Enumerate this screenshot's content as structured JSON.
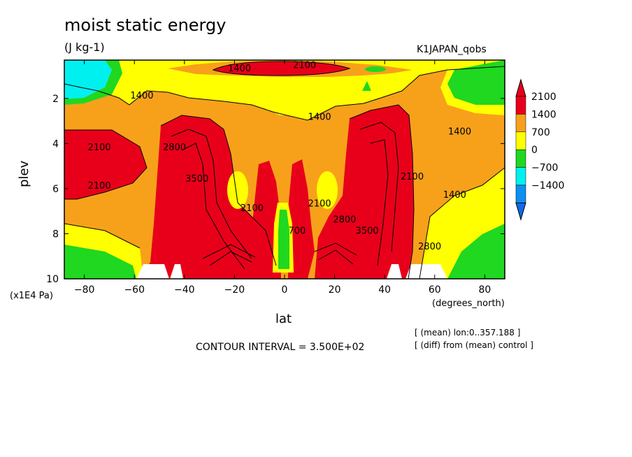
{
  "header": {
    "title": "moist static energy",
    "units": "(J kg-1)",
    "run": "K1JAPAN_qobs"
  },
  "footer": {
    "interval": "CONTOUR INTERVAL = 3.500E+02",
    "note1": "[ (mean) lon:0..357.188 ]",
    "note2": "[ (diff) from (mean) control ]"
  },
  "chart_data": {
    "type": "heatmap",
    "title": "moist static energy",
    "subtitle": "(J kg-1)",
    "xlabel": "lat",
    "xunits": "(degrees_north)",
    "ylabel": "plev",
    "yunits": "(x1E4 Pa)",
    "xlim": [
      -88,
      88
    ],
    "ylim": [
      10,
      0.3
    ],
    "x_ticks": [
      -80,
      -60,
      -40,
      -20,
      0,
      20,
      40,
      60,
      80
    ],
    "y_ticks": [
      2,
      4,
      6,
      8,
      10
    ],
    "contour_interval": 350,
    "contour_labels": [
      {
        "value": "1400",
        "x": -18,
        "y": 0.8
      },
      {
        "value": "2100",
        "x": 8,
        "y": 0.65
      },
      {
        "value": "1400",
        "x": -57,
        "y": 2.0
      },
      {
        "value": "1400",
        "x": 14,
        "y": 2.95
      },
      {
        "value": "1400",
        "x": 70,
        "y": 3.6
      },
      {
        "value": "2100",
        "x": -74,
        "y": 4.3
      },
      {
        "value": "2800",
        "x": -44,
        "y": 4.3
      },
      {
        "value": "3500",
        "x": -35,
        "y": 5.7
      },
      {
        "value": "2100",
        "x": -74,
        "y": 6.0
      },
      {
        "value": "2100",
        "x": -13,
        "y": 7.0
      },
      {
        "value": "2100",
        "x": 14,
        "y": 6.8
      },
      {
        "value": "2800",
        "x": 24,
        "y": 7.5
      },
      {
        "value": "3500",
        "x": 33,
        "y": 8.0
      },
      {
        "value": "2100",
        "x": 51,
        "y": 5.6
      },
      {
        "value": "1400",
        "x": 68,
        "y": 6.4
      },
      {
        "value": "2800",
        "x": 58,
        "y": 8.7
      },
      {
        "value": "700",
        "x": 5,
        "y": 8.0
      }
    ],
    "colorbar": {
      "levels": [
        "2100",
        "1400",
        "700",
        "0",
        "-700",
        "-1400"
      ],
      "colors": [
        "#e8001a",
        "#f7a11b",
        "#ffff00",
        "#1fd81f",
        "#00f0f0",
        "#0d90f0"
      ],
      "cap_colors": {
        "top": "#e8001a",
        "bottom": "#0d6ae8"
      }
    },
    "fill_colors": {
      "lt_neg700": "#00f0f0",
      "neg700_0": "#00f0f0",
      "0_700": "#1fd81f",
      "700_1400": "#ffff00",
      "1400_2100": "#f7a11b",
      "gt_2100": "#e8001a"
    }
  }
}
